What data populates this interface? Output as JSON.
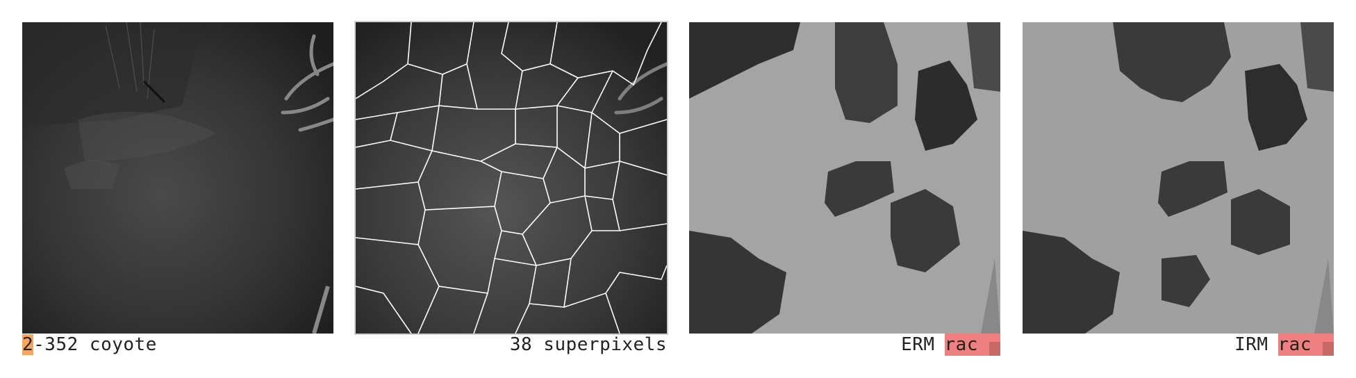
{
  "panels": [
    {
      "id": "original",
      "caption_prefix": "2",
      "caption_rest": "-352 coyote",
      "prefix_color": "#f5a65b"
    },
    {
      "id": "superpixels",
      "caption": "38 superpixels"
    },
    {
      "id": "erm",
      "method": "ERM",
      "prediction": "rac",
      "pred_color": "#f08080",
      "pred_score": 0.5
    },
    {
      "id": "irm",
      "method": "IRM",
      "prediction": "rac",
      "pred_color": "#f08080",
      "pred_score": 0.5
    }
  ]
}
